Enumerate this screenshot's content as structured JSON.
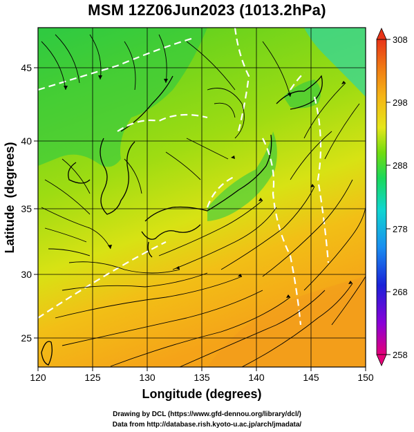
{
  "title": "MSM 12Z06Jun2023 (1013.2hPa)",
  "map": {
    "lon_range": [
      120,
      150
    ],
    "lat_range": [
      23,
      48
    ],
    "xlabel": "Longitude (degrees)",
    "ylabel": "Latitude  (degrees)",
    "x_ticks": [
      "120",
      "125",
      "130",
      "135",
      "140",
      "145",
      "150"
    ],
    "y_ticks": [
      "25",
      "30",
      "35",
      "40",
      "45"
    ],
    "field": "surface temperature with wind streamlines",
    "contour_color": "#ffffff",
    "streamline_color": "#000000"
  },
  "colorbar": {
    "min": 258,
    "max": 308,
    "tick_labels": [
      "308",
      "298",
      "288",
      "278",
      "268",
      "258"
    ],
    "colors": [
      "#e40078",
      "#8a00d8",
      "#1a22d8",
      "#1a8ef0",
      "#10d6d0",
      "#1ad85a",
      "#70dc10",
      "#e6e61a",
      "#f5b416",
      "#f07a14",
      "#e83418"
    ]
  },
  "footer": {
    "line1": "Drawing by DCL (https://www.gfd-dennou.org/library/dcl/)",
    "line2": "Data from http://database.rish.kyoto-u.ac.jp/arch/jmadata/"
  }
}
